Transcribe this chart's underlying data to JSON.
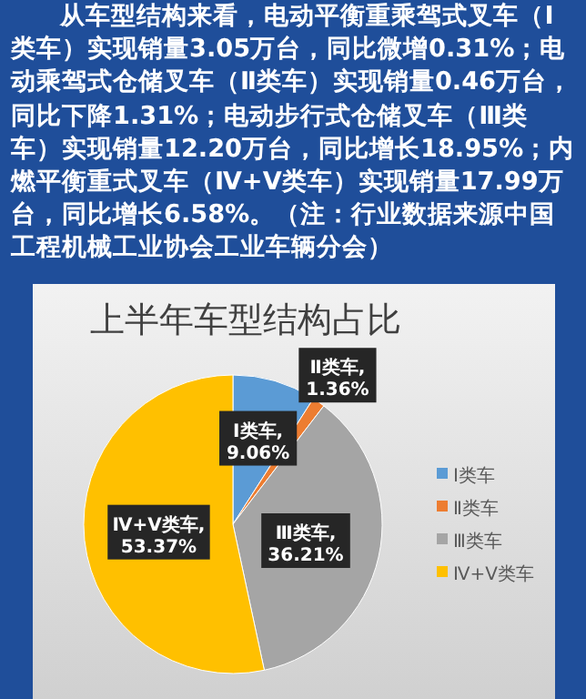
{
  "chart_data": {
    "type": "pie",
    "title": "上半年车型结构占比",
    "categories": [
      "Ⅰ类车",
      "Ⅱ类车",
      "Ⅲ类车",
      "Ⅳ+Ⅴ类车"
    ],
    "values": [
      9.06,
      1.36,
      36.21,
      53.37
    ],
    "colors": [
      "#5b9bd5",
      "#ed7d31",
      "#a5a5a5",
      "#ffc000"
    ],
    "value_labels": [
      "Ⅰ类车,\n9.06%",
      "Ⅱ类车,\n1.36%",
      "Ⅲ类车,\n36.21%",
      "Ⅳ+Ⅴ类车,\n53.37%"
    ],
    "legend": "right",
    "annotations": [
      "从车型结构来看，电动平衡重乘驾式叉车（Ⅰ类车）实现销量3.05万台，同比微增0.31%；电动乘驾式仓储叉车（Ⅱ类车）实现销量0.46万台，同比下降1.31%；电动步行式仓储叉车（Ⅲ类车）实现销量12.20万台，同比增长18.95%；内燃平衡重式叉车（Ⅳ+Ⅴ类车）实现销量17.99万台，同比增长6.58%。（注：行业数据来源中国工程机械工业协会工业车辆分会）"
    ]
  }
}
